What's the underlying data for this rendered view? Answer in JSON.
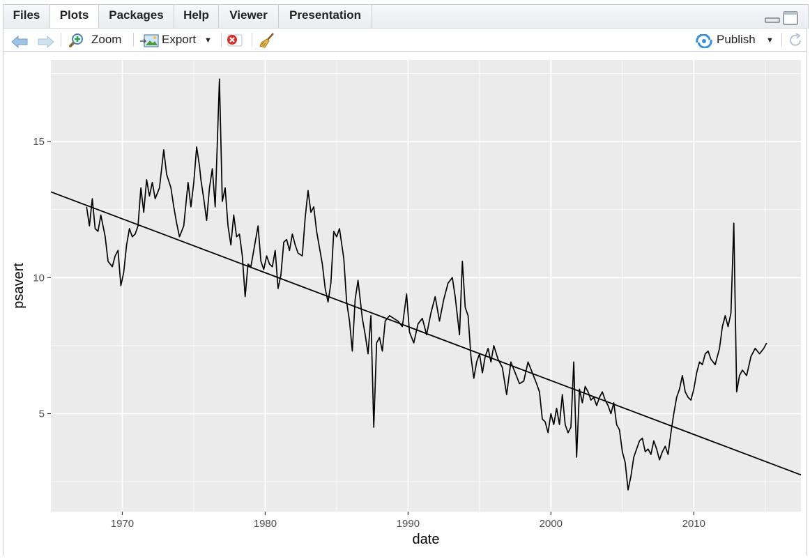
{
  "tabs": [
    {
      "label": "Files",
      "active": false
    },
    {
      "label": "Plots",
      "active": true
    },
    {
      "label": "Packages",
      "active": false
    },
    {
      "label": "Help",
      "active": false
    },
    {
      "label": "Viewer",
      "active": false
    },
    {
      "label": "Presentation",
      "active": false
    }
  ],
  "toolbar": {
    "zoom_label": "Zoom",
    "export_label": "Export",
    "publish_label": "Publish"
  },
  "icons": {
    "back": "arrow-left-icon",
    "forward": "arrow-right-icon",
    "zoom": "magnifier-plus-icon",
    "export": "export-image-icon",
    "remove": "remove-plot-icon",
    "clear": "broom-icon",
    "publish": "publish-icon",
    "refresh": "refresh-icon",
    "minimize": "minimize-pane-icon",
    "maximize": "maximize-pane-icon"
  },
  "colors": {
    "panel_bg": "#ebebeb",
    "grid_major": "#ffffff",
    "line": "#000000",
    "tick_label": "#4d4d4d"
  },
  "chart_data": {
    "type": "line",
    "title": "",
    "xlabel": "date",
    "ylabel": "psavert",
    "xlim": [
      1965.0,
      2017.5
    ],
    "ylim": [
      1.4,
      18.0
    ],
    "x_ticks": [
      1970,
      1980,
      1990,
      2000,
      2010
    ],
    "x_tick_labels": [
      "1970",
      "1980",
      "1990",
      "2000",
      "2010"
    ],
    "y_ticks": [
      5,
      10,
      15
    ],
    "y_tick_labels": [
      "5",
      "10",
      "15"
    ],
    "grid": true,
    "series": [
      {
        "points": [
          [
            1967.5,
            12.6
          ],
          [
            1967.7,
            11.9
          ],
          [
            1967.9,
            12.9
          ],
          [
            1968.1,
            11.8
          ],
          [
            1968.3,
            11.7
          ],
          [
            1968.5,
            12.3
          ],
          [
            1968.8,
            11.5
          ],
          [
            1969.0,
            10.6
          ],
          [
            1969.3,
            10.4
          ],
          [
            1969.5,
            10.8
          ],
          [
            1969.7,
            11.0
          ],
          [
            1969.9,
            9.7
          ],
          [
            1970.1,
            10.2
          ],
          [
            1970.3,
            11.2
          ],
          [
            1970.5,
            11.8
          ],
          [
            1970.7,
            11.5
          ],
          [
            1970.9,
            11.6
          ],
          [
            1971.1,
            11.9
          ],
          [
            1971.3,
            13.3
          ],
          [
            1971.5,
            12.4
          ],
          [
            1971.7,
            13.6
          ],
          [
            1971.9,
            13.0
          ],
          [
            1972.1,
            13.5
          ],
          [
            1972.3,
            12.9
          ],
          [
            1972.6,
            13.3
          ],
          [
            1972.9,
            14.7
          ],
          [
            1973.1,
            13.8
          ],
          [
            1973.4,
            13.3
          ],
          [
            1973.6,
            12.6
          ],
          [
            1973.8,
            12.0
          ],
          [
            1974.0,
            11.5
          ],
          [
            1974.3,
            11.9
          ],
          [
            1974.6,
            13.5
          ],
          [
            1974.8,
            12.6
          ],
          [
            1975.0,
            13.5
          ],
          [
            1975.2,
            14.8
          ],
          [
            1975.4,
            14.1
          ],
          [
            1975.5,
            13.6
          ],
          [
            1975.7,
            12.9
          ],
          [
            1975.9,
            12.1
          ],
          [
            1976.1,
            13.3
          ],
          [
            1976.3,
            14.0
          ],
          [
            1976.5,
            12.6
          ],
          [
            1976.8,
            17.3
          ],
          [
            1977.0,
            12.8
          ],
          [
            1977.2,
            13.3
          ],
          [
            1977.4,
            11.9
          ],
          [
            1977.6,
            11.2
          ],
          [
            1977.8,
            12.3
          ],
          [
            1978.0,
            11.5
          ],
          [
            1978.2,
            11.6
          ],
          [
            1978.4,
            10.8
          ],
          [
            1978.6,
            9.3
          ],
          [
            1978.8,
            10.5
          ],
          [
            1979.0,
            10.4
          ],
          [
            1979.2,
            11.0
          ],
          [
            1979.5,
            11.9
          ],
          [
            1979.7,
            10.6
          ],
          [
            1979.9,
            10.3
          ],
          [
            1980.1,
            10.8
          ],
          [
            1980.3,
            10.5
          ],
          [
            1980.5,
            10.4
          ],
          [
            1980.7,
            11.0
          ],
          [
            1980.9,
            9.6
          ],
          [
            1981.1,
            10.1
          ],
          [
            1981.3,
            11.3
          ],
          [
            1981.5,
            11.4
          ],
          [
            1981.7,
            11.0
          ],
          [
            1981.9,
            11.6
          ],
          [
            1982.1,
            11.2
          ],
          [
            1982.3,
            10.9
          ],
          [
            1982.6,
            10.8
          ],
          [
            1982.8,
            12.2
          ],
          [
            1983.0,
            13.2
          ],
          [
            1983.2,
            12.4
          ],
          [
            1983.4,
            12.6
          ],
          [
            1983.6,
            11.7
          ],
          [
            1983.8,
            11.1
          ],
          [
            1984.0,
            10.5
          ],
          [
            1984.2,
            9.6
          ],
          [
            1984.4,
            9.1
          ],
          [
            1984.6,
            9.8
          ],
          [
            1984.8,
            11.7
          ],
          [
            1985.0,
            11.5
          ],
          [
            1985.2,
            11.8
          ],
          [
            1985.5,
            10.7
          ],
          [
            1985.7,
            9.1
          ],
          [
            1985.9,
            8.4
          ],
          [
            1986.1,
            7.3
          ],
          [
            1986.3,
            9.2
          ],
          [
            1986.5,
            9.9
          ],
          [
            1986.8,
            8.5
          ],
          [
            1987.0,
            7.9
          ],
          [
            1987.2,
            7.2
          ],
          [
            1987.4,
            8.6
          ],
          [
            1987.6,
            4.5
          ],
          [
            1987.8,
            7.6
          ],
          [
            1988.0,
            7.8
          ],
          [
            1988.2,
            7.3
          ],
          [
            1988.4,
            8.4
          ],
          [
            1988.7,
            8.6
          ],
          [
            1989.0,
            8.5
          ],
          [
            1989.3,
            8.4
          ],
          [
            1989.6,
            8.2
          ],
          [
            1989.9,
            9.4
          ],
          [
            1990.1,
            8.0
          ],
          [
            1990.4,
            7.6
          ],
          [
            1990.7,
            8.3
          ],
          [
            1991.0,
            8.5
          ],
          [
            1991.3,
            7.9
          ],
          [
            1991.6,
            8.7
          ],
          [
            1991.9,
            9.3
          ],
          [
            1992.2,
            8.4
          ],
          [
            1992.5,
            9.2
          ],
          [
            1992.8,
            9.8
          ],
          [
            1993.1,
            10.0
          ],
          [
            1993.3,
            9.3
          ],
          [
            1993.6,
            7.9
          ],
          [
            1993.8,
            10.6
          ],
          [
            1994.0,
            8.9
          ],
          [
            1994.2,
            8.6
          ],
          [
            1994.4,
            7.1
          ],
          [
            1994.6,
            6.3
          ],
          [
            1994.8,
            6.9
          ],
          [
            1995.0,
            7.2
          ],
          [
            1995.2,
            6.5
          ],
          [
            1995.4,
            7.1
          ],
          [
            1995.6,
            7.4
          ],
          [
            1995.8,
            6.9
          ],
          [
            1996.0,
            7.5
          ],
          [
            1996.3,
            7.0
          ],
          [
            1996.6,
            6.7
          ],
          [
            1996.9,
            5.7
          ],
          [
            1997.2,
            6.9
          ],
          [
            1997.5,
            6.5
          ],
          [
            1997.8,
            6.1
          ],
          [
            1998.1,
            6.2
          ],
          [
            1998.4,
            6.9
          ],
          [
            1998.7,
            6.5
          ],
          [
            1999.0,
            6.1
          ],
          [
            1999.2,
            5.8
          ],
          [
            1999.4,
            4.8
          ],
          [
            1999.6,
            4.7
          ],
          [
            1999.8,
            4.3
          ],
          [
            2000.0,
            5.0
          ],
          [
            2000.2,
            4.6
          ],
          [
            2000.4,
            5.2
          ],
          [
            2000.6,
            4.6
          ],
          [
            2000.8,
            5.7
          ],
          [
            2001.0,
            4.6
          ],
          [
            2001.2,
            4.3
          ],
          [
            2001.4,
            4.5
          ],
          [
            2001.6,
            6.9
          ],
          [
            2001.8,
            3.4
          ],
          [
            2002.0,
            5.9
          ],
          [
            2002.2,
            5.4
          ],
          [
            2002.4,
            6.0
          ],
          [
            2002.6,
            5.8
          ],
          [
            2002.8,
            5.5
          ],
          [
            2003.0,
            5.6
          ],
          [
            2003.2,
            5.3
          ],
          [
            2003.4,
            5.6
          ],
          [
            2003.6,
            5.8
          ],
          [
            2003.8,
            5.5
          ],
          [
            2004.0,
            5.3
          ],
          [
            2004.2,
            5.0
          ],
          [
            2004.4,
            5.4
          ],
          [
            2004.6,
            4.6
          ],
          [
            2004.8,
            4.4
          ],
          [
            2005.0,
            3.6
          ],
          [
            2005.2,
            3.2
          ],
          [
            2005.4,
            2.2
          ],
          [
            2005.6,
            2.7
          ],
          [
            2005.8,
            3.4
          ],
          [
            2006.0,
            3.7
          ],
          [
            2006.2,
            4.0
          ],
          [
            2006.4,
            4.1
          ],
          [
            2006.6,
            3.6
          ],
          [
            2006.8,
            3.7
          ],
          [
            2007.0,
            3.5
          ],
          [
            2007.2,
            4.0
          ],
          [
            2007.4,
            3.7
          ],
          [
            2007.6,
            3.3
          ],
          [
            2007.8,
            3.6
          ],
          [
            2008.0,
            3.8
          ],
          [
            2008.2,
            3.5
          ],
          [
            2008.4,
            4.3
          ],
          [
            2008.6,
            5.0
          ],
          [
            2008.8,
            5.6
          ],
          [
            2009.0,
            5.9
          ],
          [
            2009.2,
            6.4
          ],
          [
            2009.4,
            5.8
          ],
          [
            2009.6,
            5.6
          ],
          [
            2009.8,
            5.5
          ],
          [
            2010.0,
            5.9
          ],
          [
            2010.2,
            6.5
          ],
          [
            2010.4,
            6.9
          ],
          [
            2010.6,
            6.8
          ],
          [
            2010.8,
            7.2
          ],
          [
            2011.0,
            7.3
          ],
          [
            2011.2,
            7.0
          ],
          [
            2011.5,
            6.8
          ],
          [
            2011.8,
            7.4
          ],
          [
            2012.0,
            8.2
          ],
          [
            2012.2,
            8.6
          ],
          [
            2012.4,
            8.2
          ],
          [
            2012.6,
            8.7
          ],
          [
            2012.8,
            12.0
          ],
          [
            2013.0,
            5.8
          ],
          [
            2013.2,
            6.4
          ],
          [
            2013.4,
            6.6
          ],
          [
            2013.7,
            6.4
          ],
          [
            2014.0,
            7.1
          ],
          [
            2014.3,
            7.4
          ],
          [
            2014.6,
            7.2
          ],
          [
            2014.9,
            7.4
          ],
          [
            2015.1,
            7.6
          ]
        ]
      },
      {
        "type": "trend",
        "points": [
          [
            1965.0,
            13.15
          ],
          [
            2017.5,
            2.75
          ]
        ]
      }
    ]
  }
}
